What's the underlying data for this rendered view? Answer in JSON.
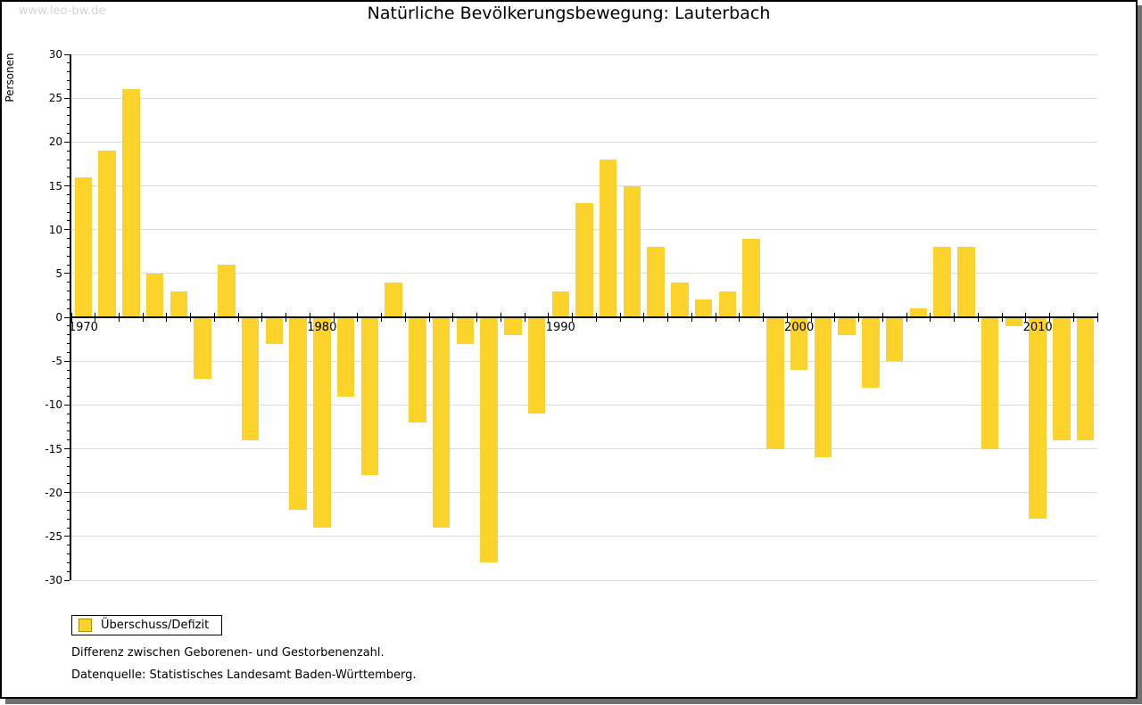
{
  "watermark": "www.leo-bw.de",
  "title": "Natürliche Bevölkerungsbewegung: Lauterbach",
  "y_axis_label": "Personen",
  "legend": {
    "label": "Überschuss/Defizit"
  },
  "captions": {
    "line1": "Differenz zwischen Geborenen- und Gestorbenenzahl.",
    "line2": "Datenquelle: Statistisches Landesamt Baden-Württemberg."
  },
  "colors": {
    "bar": "#FBD32B",
    "bar_border": "#AD8E00",
    "grid": "#DCDCDC",
    "axis": "#000000",
    "watermark": "#D5D5D5"
  },
  "chart_data": {
    "type": "bar",
    "title": "Natürliche Bevölkerungsbewegung: Lauterbach",
    "xlabel": "",
    "ylabel": "Personen",
    "ylim": [
      -30,
      30
    ],
    "y_tick_step": 5,
    "y_minor_tick_step": 1,
    "y_tick_labels": [
      "30",
      "25",
      "20",
      "15",
      "10",
      "5",
      "0",
      "-5",
      "-10",
      "-15",
      "-20",
      "-25",
      "-30"
    ],
    "x_tick_labels": [
      "1970",
      "1980",
      "1990",
      "2000",
      "2010"
    ],
    "grid": true,
    "legend_position": "bottom-left",
    "series_name": "Überschuss/Defizit",
    "years": [
      1970,
      1971,
      1972,
      1973,
      1974,
      1975,
      1976,
      1977,
      1978,
      1979,
      1980,
      1981,
      1982,
      1983,
      1984,
      1985,
      1986,
      1987,
      1988,
      1989,
      1990,
      1991,
      1992,
      1993,
      1994,
      1995,
      1996,
      1997,
      1998,
      1999,
      2000,
      2001,
      2002,
      2003,
      2004,
      2005,
      2006,
      2007,
      2008,
      2009,
      2010,
      2011,
      2012
    ],
    "values": [
      16,
      19,
      26,
      5,
      3,
      -7,
      6,
      -14,
      -3,
      -22,
      -24,
      -9,
      -18,
      4,
      -12,
      -24,
      -3,
      -28,
      -2,
      -11,
      3,
      13,
      18,
      15,
      8,
      4,
      2,
      3,
      9,
      -15,
      -6,
      -16,
      -2,
      -8,
      -5,
      1,
      8,
      8,
      -15,
      -1,
      -23,
      -14,
      -14
    ]
  }
}
